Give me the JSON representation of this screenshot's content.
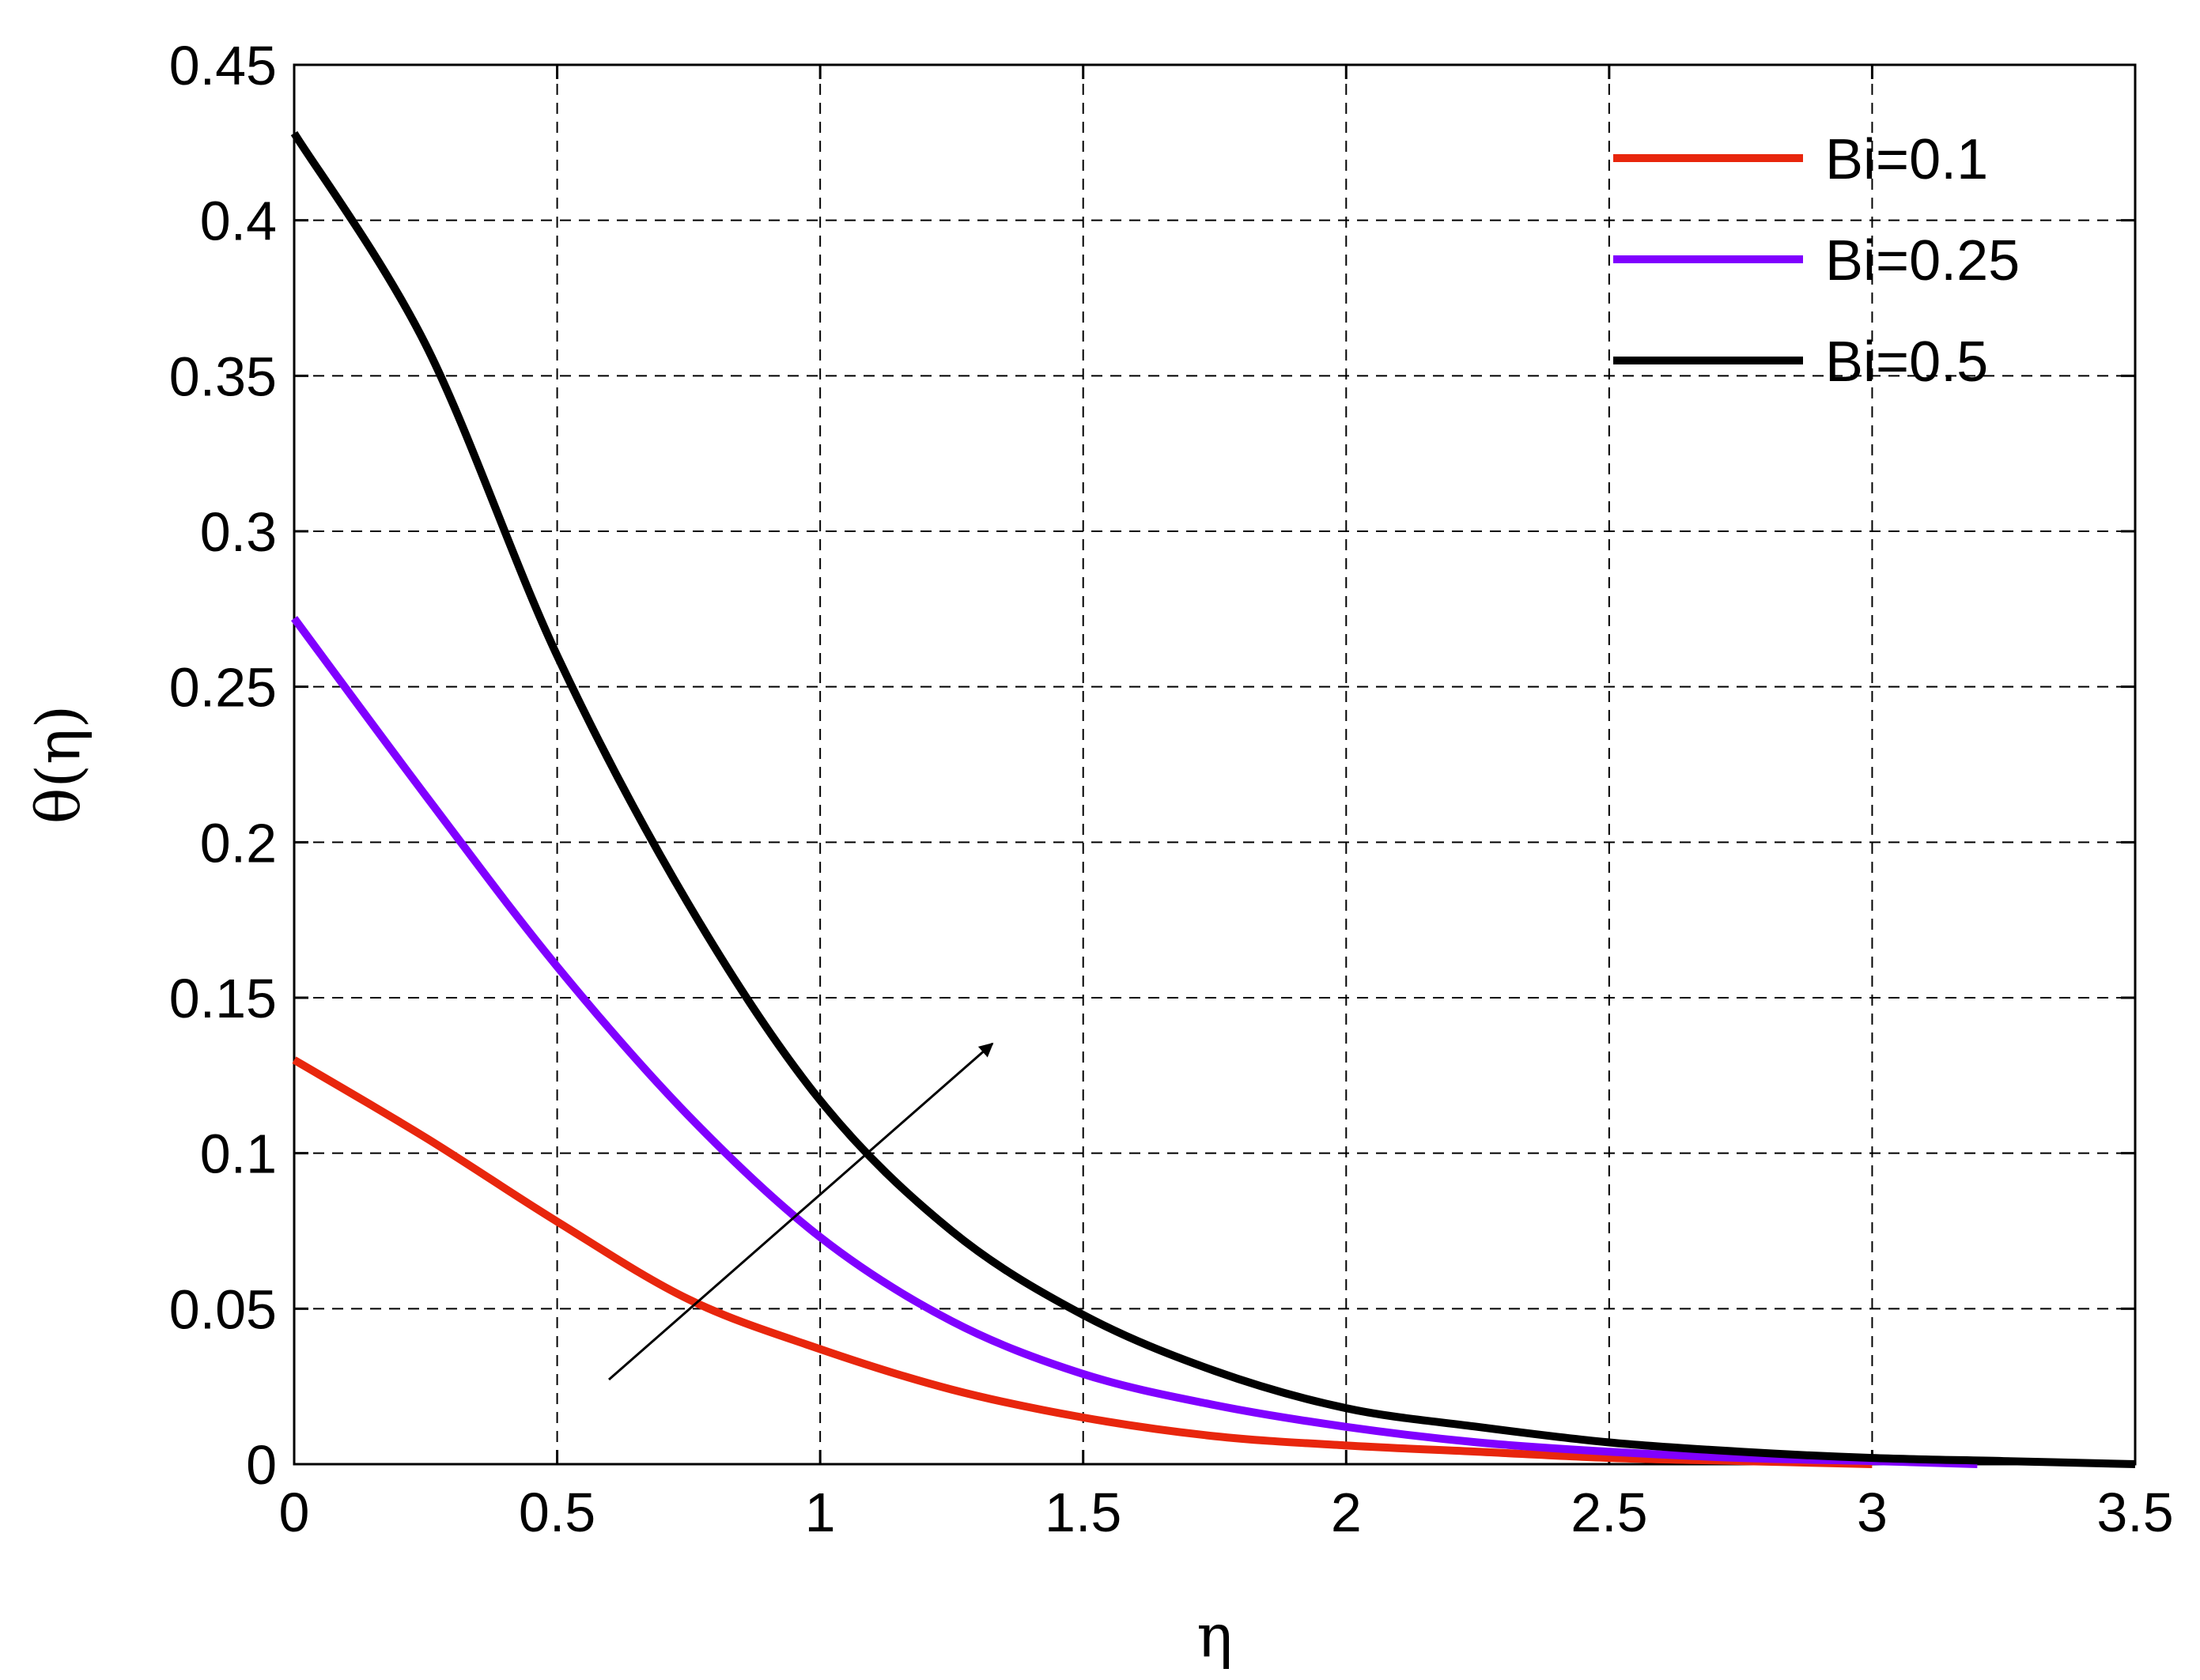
{
  "chart_data": {
    "type": "line",
    "title": "",
    "xlabel": "η",
    "ylabel": "θ(η)",
    "xlim": [
      0,
      3.5
    ],
    "ylim": [
      0,
      0.45
    ],
    "xticks": [
      0,
      0.5,
      1,
      1.5,
      2,
      2.5,
      3,
      3.5
    ],
    "xtick_labels": [
      "0",
      "0.5",
      "1",
      "1.5",
      "2",
      "2.5",
      "3",
      "3.5"
    ],
    "yticks": [
      0,
      0.05,
      0.1,
      0.15,
      0.2,
      0.25,
      0.3,
      0.35,
      0.4,
      0.45
    ],
    "ytick_labels": [
      "0",
      "0.05",
      "0.1",
      "0.15",
      "0.2",
      "0.25",
      "0.3",
      "0.35",
      "0.4",
      "0.45"
    ],
    "grid": true,
    "legend_position": "top-right",
    "annotation": "arrow indicating increasing Bi",
    "series": [
      {
        "name": "Bi=0.1",
        "color": "#e8260d",
        "x": [
          0,
          0.25,
          0.5,
          0.75,
          1.0,
          1.25,
          1.5,
          1.75,
          2.0,
          2.25,
          2.5,
          2.75,
          3.0
        ],
        "y": [
          0.13,
          0.105,
          0.078,
          0.053,
          0.037,
          0.024,
          0.015,
          0.009,
          0.006,
          0.004,
          0.002,
          0.001,
          0.0
        ]
      },
      {
        "name": "Bi=0.25",
        "color": "#8000ff",
        "x": [
          0,
          0.25,
          0.5,
          0.75,
          1.0,
          1.25,
          1.5,
          1.75,
          2.0,
          2.25,
          2.5,
          2.75,
          3.0,
          3.2
        ],
        "y": [
          0.272,
          0.215,
          0.16,
          0.112,
          0.073,
          0.046,
          0.029,
          0.019,
          0.012,
          0.007,
          0.004,
          0.002,
          0.001,
          0.0
        ]
      },
      {
        "name": "Bi=0.5",
        "color": "#000000",
        "x": [
          0,
          0.25,
          0.5,
          0.75,
          1.0,
          1.25,
          1.5,
          1.75,
          2.0,
          2.25,
          2.5,
          2.75,
          3.0,
          3.25,
          3.5
        ],
        "y": [
          0.428,
          0.36,
          0.26,
          0.18,
          0.117,
          0.075,
          0.048,
          0.03,
          0.018,
          0.012,
          0.007,
          0.004,
          0.002,
          0.001,
          0.0
        ]
      }
    ]
  }
}
